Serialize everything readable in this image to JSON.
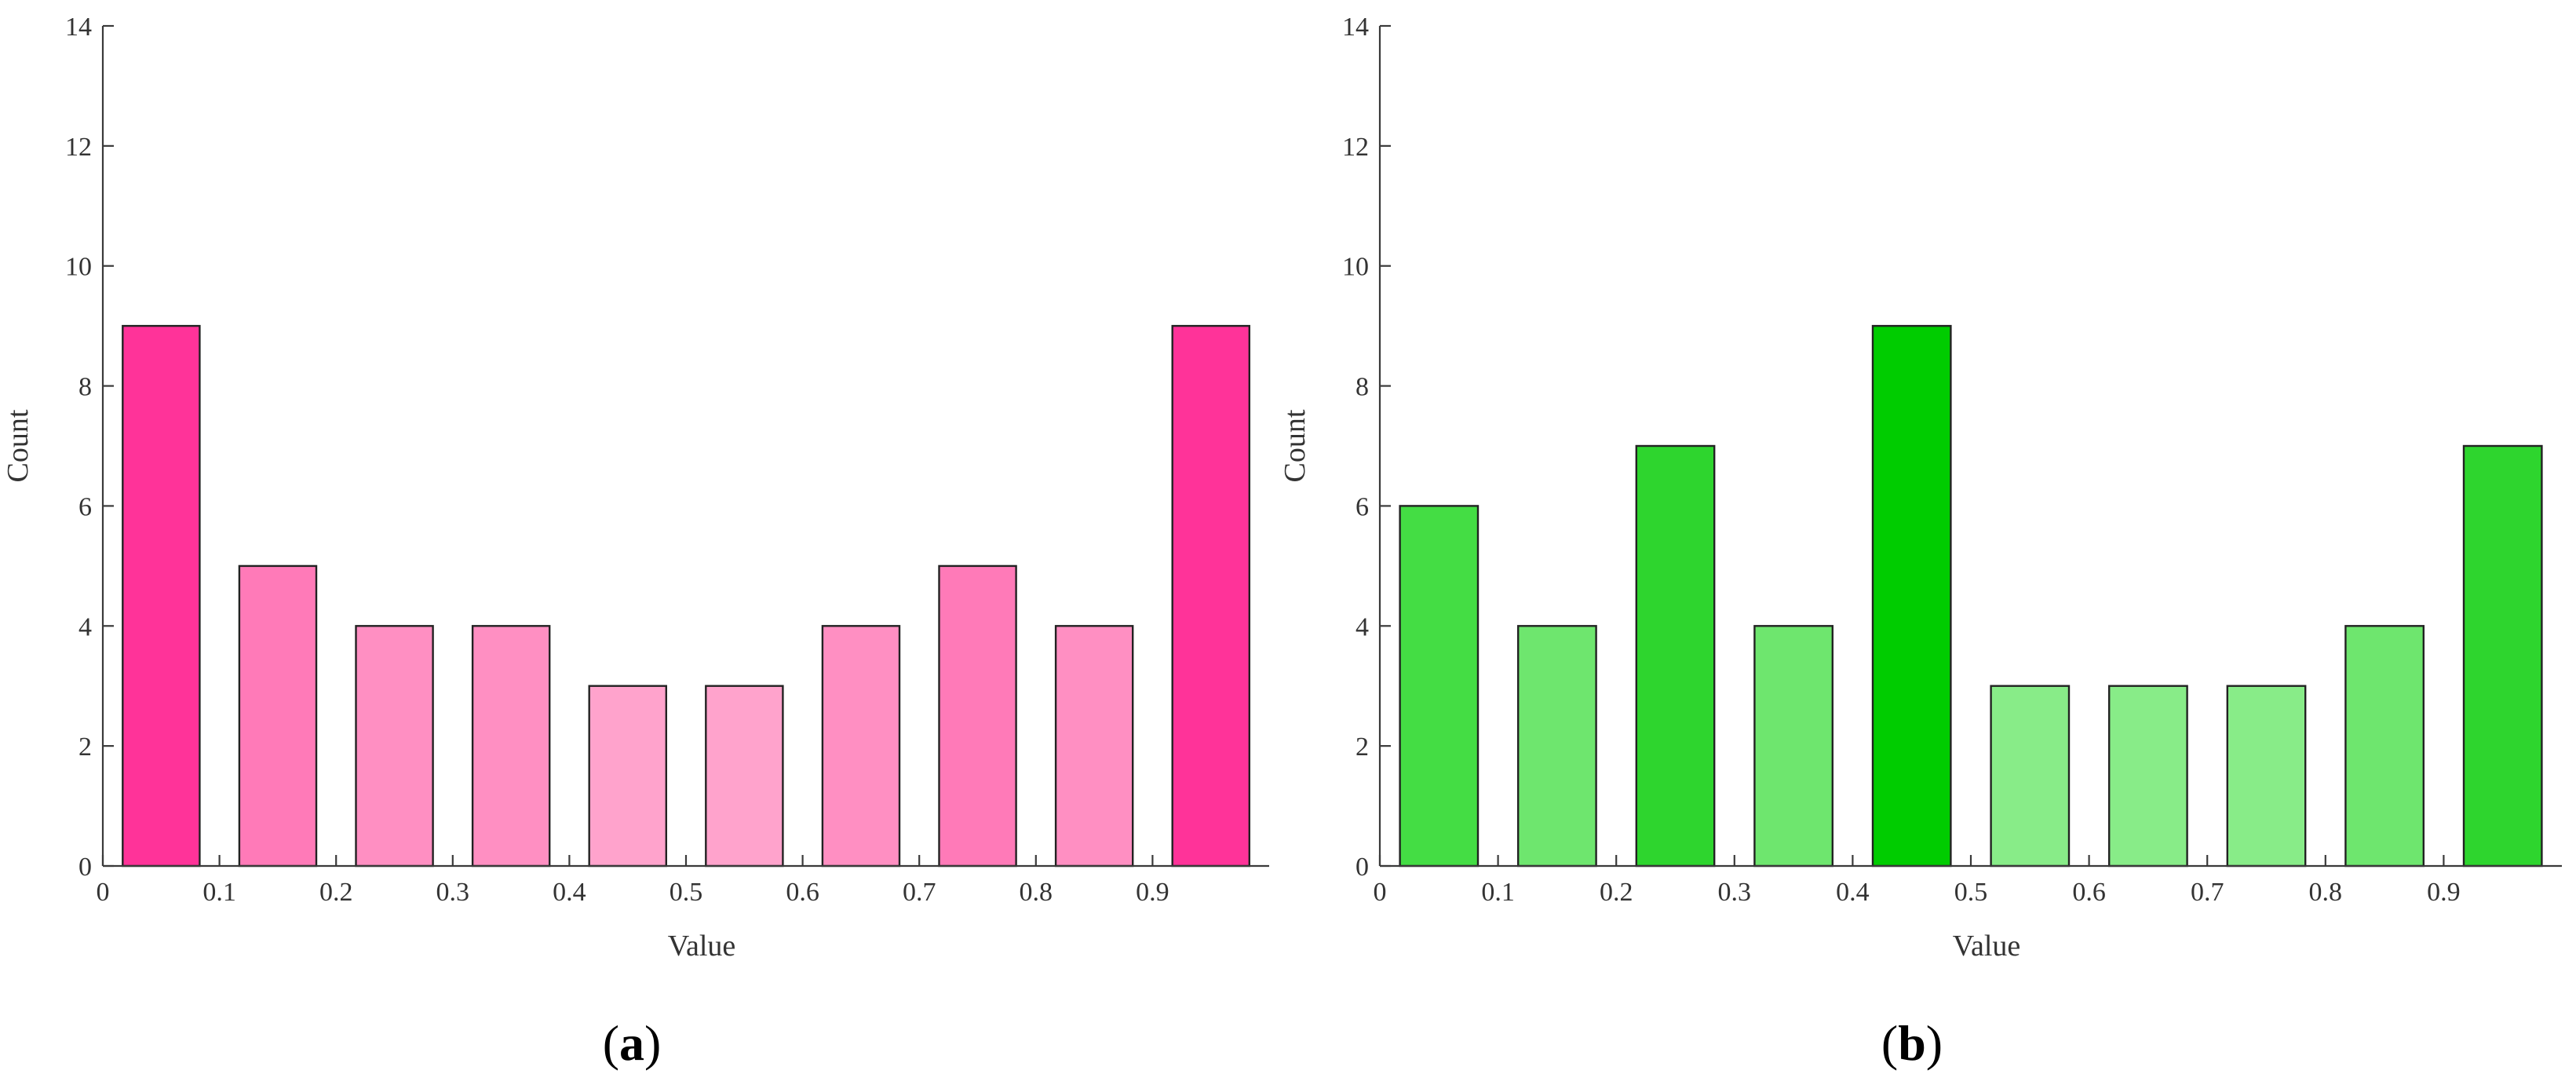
{
  "chart_data": [
    {
      "type": "bar",
      "panel_label": "(a)",
      "panel_letter": "a",
      "xlabel": "Value",
      "ylabel": "Count",
      "xlim": [
        0,
        1
      ],
      "ylim": [
        0,
        14
      ],
      "x_ticks": [
        0,
        0.1,
        0.2,
        0.3,
        0.4,
        0.5,
        0.6,
        0.7,
        0.8,
        0.9
      ],
      "x_tick_labels": [
        "0",
        "0.1",
        "0.2",
        "0.3",
        "0.4",
        "0.5",
        "0.6",
        "0.7",
        "0.8",
        "0.9"
      ],
      "y_ticks": [
        0,
        2,
        4,
        6,
        8,
        10,
        12,
        14
      ],
      "y_tick_labels": [
        "0",
        "2",
        "4",
        "6",
        "8",
        "10",
        "12",
        "14"
      ],
      "bin_centers": [
        0.05,
        0.15,
        0.25,
        0.35,
        0.45,
        0.55,
        0.65,
        0.75,
        0.85,
        0.95
      ],
      "values": [
        9,
        5,
        4,
        4,
        3,
        3,
        4,
        5,
        4,
        9
      ],
      "colors": [
        "#ff3399",
        "#ff7ab8",
        "#ff8fc2",
        "#ff8fc2",
        "#ffa3cc",
        "#ffa3cc",
        "#ff8fc2",
        "#ff7ab8",
        "#ff8fc2",
        "#ff3399"
      ],
      "grid": false,
      "legend": "none"
    },
    {
      "type": "bar",
      "panel_label": "(b)",
      "panel_letter": "b",
      "xlabel": "Value",
      "ylabel": "Count",
      "xlim": [
        0,
        1
      ],
      "ylim": [
        0,
        14
      ],
      "x_ticks": [
        0,
        0.1,
        0.2,
        0.3,
        0.4,
        0.5,
        0.6,
        0.7,
        0.8,
        0.9
      ],
      "x_tick_labels": [
        "0",
        "0.1",
        "0.2",
        "0.3",
        "0.4",
        "0.5",
        "0.6",
        "0.7",
        "0.8",
        "0.9"
      ],
      "y_ticks": [
        0,
        2,
        4,
        6,
        8,
        10,
        12,
        14
      ],
      "y_tick_labels": [
        "0",
        "2",
        "4",
        "6",
        "8",
        "10",
        "12",
        "14"
      ],
      "bin_centers": [
        0.05,
        0.15,
        0.25,
        0.35,
        0.45,
        0.55,
        0.65,
        0.75,
        0.85,
        0.95
      ],
      "values": [
        6,
        4,
        7,
        4,
        9,
        3,
        3,
        3,
        4,
        7
      ],
      "colors": [
        "#44dd44",
        "#6ee66e",
        "#2ed52e",
        "#6ee66e",
        "#00cc00",
        "#88ec88",
        "#88ec88",
        "#88ec88",
        "#6ee66e",
        "#2ed52e"
      ],
      "grid": false,
      "legend": "none"
    }
  ]
}
